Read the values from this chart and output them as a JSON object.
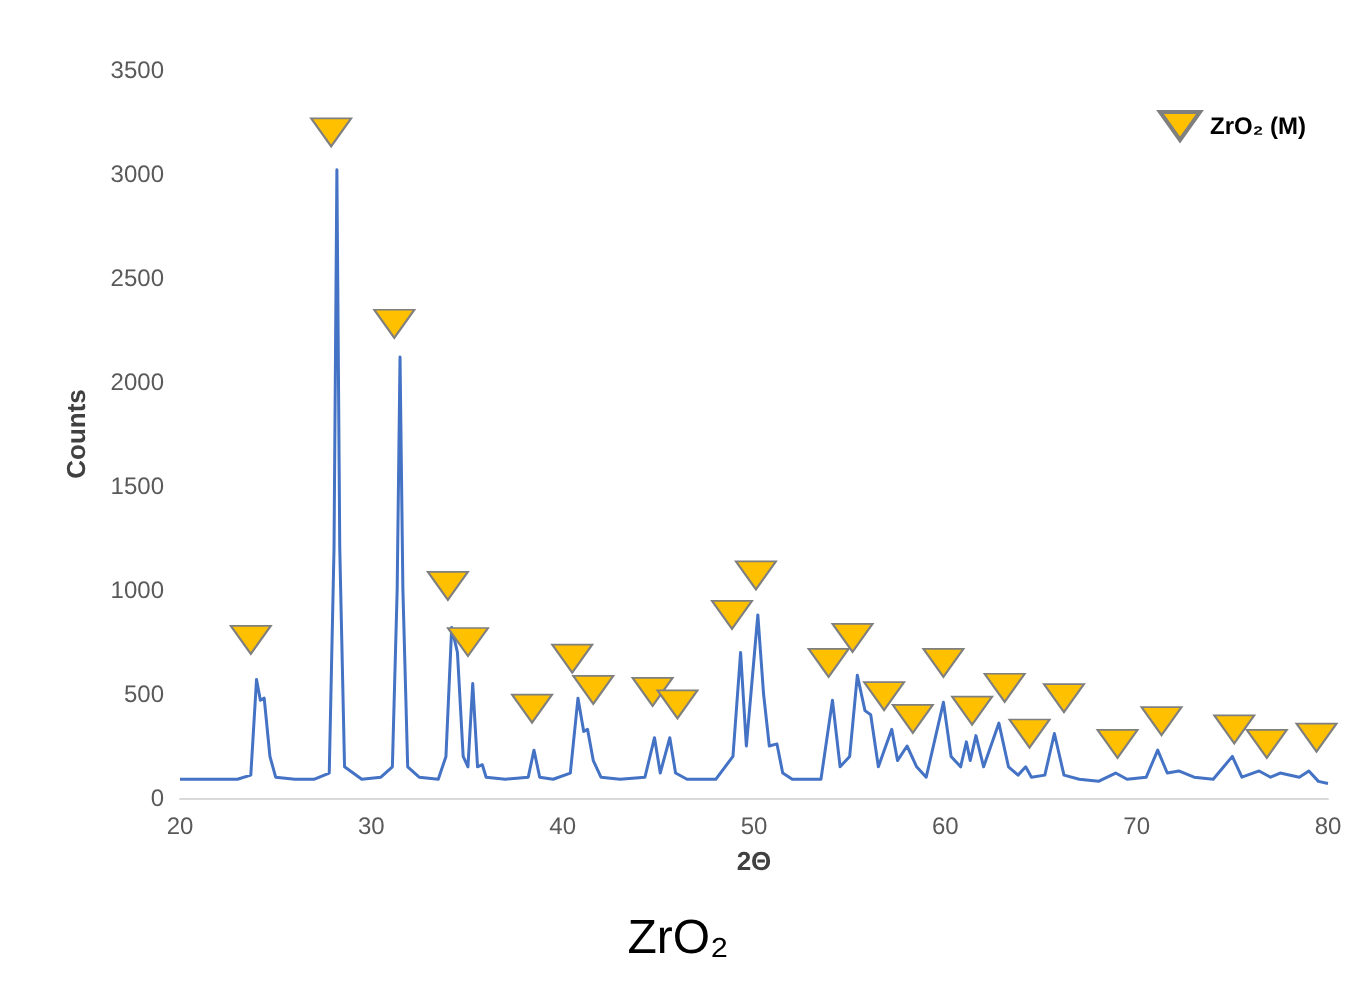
{
  "chart_data": {
    "type": "line",
    "title": "ZrO₂",
    "xlabel": "2Θ",
    "ylabel": "Counts",
    "xlim": [
      20,
      80
    ],
    "xticks": [
      20,
      30,
      40,
      50,
      60,
      70,
      80
    ],
    "ylim": [
      0,
      3500
    ],
    "yticks": [
      0,
      500,
      1000,
      1500,
      2000,
      2500,
      3000,
      3500
    ],
    "grid": false,
    "legend": "top right",
    "series": [
      {
        "color": "#4472c4",
        "marker": "none",
        "x": [
          20,
          21,
          22,
          23,
          23.7,
          24.0,
          24.2,
          24.4,
          24.7,
          25.0,
          26,
          27,
          27.8,
          28.05,
          28.2,
          28.35,
          28.6,
          29.5,
          30.5,
          31.1,
          31.35,
          31.5,
          31.65,
          31.9,
          32.5,
          33.5,
          33.9,
          34.2,
          34.5,
          34.8,
          35.05,
          35.3,
          35.55,
          35.8,
          36.0,
          37,
          38.2,
          38.5,
          38.8,
          39.5,
          40.4,
          40.8,
          41.1,
          41.3,
          41.6,
          42,
          43,
          44.3,
          44.8,
          45.1,
          45.6,
          45.9,
          46.5,
          48,
          48.9,
          49.3,
          49.6,
          50.2,
          50.5,
          50.8,
          51.2,
          51.5,
          52,
          53.5,
          54.1,
          54.5,
          55.0,
          55.4,
          55.8,
          56.1,
          56.5,
          57.2,
          57.5,
          58.0,
          58.5,
          59.0,
          59.9,
          60.3,
          60.8,
          61.1,
          61.3,
          61.6,
          62.0,
          62.8,
          63.3,
          63.8,
          64.2,
          64.5,
          65.2,
          65.7,
          66.2,
          67,
          68,
          68.9,
          69.5,
          70.5,
          71.1,
          71.6,
          72.2,
          73,
          74,
          75.0,
          75.5,
          76.4,
          77,
          77.5,
          78.5,
          79.0,
          79.5,
          80
        ],
        "values": [
          90,
          90,
          90,
          90,
          110,
          570,
          470,
          480,
          200,
          100,
          90,
          90,
          120,
          1200,
          3020,
          1200,
          150,
          90,
          100,
          150,
          1000,
          2120,
          1000,
          150,
          100,
          90,
          200,
          820,
          700,
          200,
          150,
          550,
          150,
          160,
          100,
          90,
          100,
          230,
          100,
          90,
          120,
          480,
          320,
          330,
          180,
          100,
          90,
          100,
          290,
          120,
          290,
          120,
          90,
          90,
          200,
          700,
          250,
          880,
          500,
          250,
          260,
          120,
          90,
          90,
          470,
          150,
          200,
          590,
          420,
          400,
          150,
          330,
          180,
          250,
          150,
          100,
          460,
          200,
          150,
          270,
          180,
          300,
          150,
          360,
          150,
          110,
          150,
          100,
          110,
          310,
          110,
          90,
          80,
          120,
          90,
          100,
          230,
          120,
          130,
          100,
          90,
          200,
          100,
          130,
          100,
          120,
          100,
          130,
          80,
          70
        ]
      },
      {
        "type": "scatter",
        "name": "ZrO₂ (M)",
        "color": "#ffc000",
        "marker": "triangle",
        "x": [
          23.7,
          27.9,
          31.2,
          34.0,
          35.05,
          38.4,
          40.5,
          41.6,
          44.7,
          46.0,
          48.85,
          50.1,
          53.9,
          55.15,
          56.8,
          58.3,
          59.9,
          61.4,
          63.1,
          64.4,
          66.2,
          69.0,
          71.3,
          75.1,
          76.8,
          79.4
        ],
        "values": [
          760,
          3200,
          2280,
          1020,
          750,
          430,
          670,
          520,
          510,
          450,
          880,
          1070,
          650,
          770,
          490,
          380,
          650,
          420,
          530,
          310,
          480,
          260,
          370,
          330,
          260,
          290
        ]
      }
    ]
  }
}
